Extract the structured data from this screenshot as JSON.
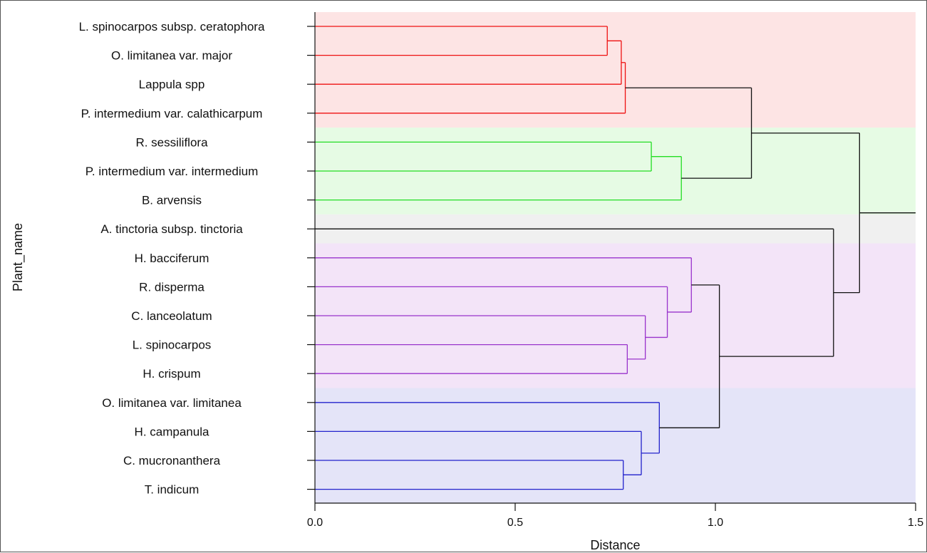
{
  "chart_data": {
    "type": "dendrogram",
    "xlabel": "Distance",
    "ylabel": "Plant_name",
    "xlim": [
      0,
      1.5
    ],
    "x_ticks": [
      {
        "value": 0,
        "label": "0.0"
      },
      {
        "value": 0.5,
        "label": "0.5"
      },
      {
        "value": 1.0,
        "label": "1.0"
      },
      {
        "value": 1.5,
        "label": "1.5"
      }
    ],
    "leaves": [
      "L. spinocarpos subsp. ceratophora",
      "O. limitanea var. major",
      "Lappula spp",
      "P. intermedium var. calathicarpum",
      "R. sessiliflora",
      "P. intermedium var. intermedium",
      "B. arvensis",
      "A. tinctoria subsp. tinctoria",
      "H. bacciferum",
      "R. disperma",
      "C. lanceolatum",
      "L. spinocarpos",
      "H. crispum",
      "O. limitanea var. limitanea",
      "H. campanula",
      "C. mucronanthera",
      "T. indicum"
    ],
    "clusters": [
      {
        "color": "#ee1111",
        "band_color": "#fde4e4",
        "first_leaf": 0,
        "last_leaf": 3
      },
      {
        "color": "#22dd22",
        "band_color": "#e6fbe4",
        "first_leaf": 4,
        "last_leaf": 6
      },
      {
        "color": "#333333",
        "band_color": "#f0f0f0",
        "first_leaf": 7,
        "last_leaf": 7
      },
      {
        "color": "#9933cc",
        "band_color": "#f3e4f8",
        "first_leaf": 8,
        "last_leaf": 12
      },
      {
        "color": "#2222cc",
        "band_color": "#e4e4f8",
        "first_leaf": 13,
        "last_leaf": 16
      }
    ],
    "merges": [
      {
        "id": "m1",
        "left": 0,
        "right": 1,
        "height": 0.73,
        "color": "#ee1111"
      },
      {
        "id": "m2",
        "left": "m1",
        "right": 2,
        "height": 0.765,
        "color": "#ee1111"
      },
      {
        "id": "m3",
        "left": "m2",
        "right": 3,
        "height": 0.775,
        "color": "#ee1111"
      },
      {
        "id": "m4",
        "left": 4,
        "right": 5,
        "height": 0.84,
        "color": "#22dd22"
      },
      {
        "id": "m5",
        "left": "m4",
        "right": 6,
        "height": 0.915,
        "color": "#22dd22"
      },
      {
        "id": "m6",
        "left": "m3",
        "right": "m5",
        "height": 1.09,
        "color": "#111111"
      },
      {
        "id": "m7",
        "left": 11,
        "right": 12,
        "height": 0.78,
        "color": "#9933cc"
      },
      {
        "id": "m8",
        "left": 10,
        "right": "m7",
        "height": 0.825,
        "color": "#9933cc"
      },
      {
        "id": "m9",
        "left": 9,
        "right": "m8",
        "height": 0.88,
        "color": "#9933cc"
      },
      {
        "id": "m10",
        "left": 8,
        "right": "m9",
        "height": 0.94,
        "color": "#9933cc"
      },
      {
        "id": "m11",
        "left": 15,
        "right": 16,
        "height": 0.77,
        "color": "#2222cc"
      },
      {
        "id": "m12",
        "left": 14,
        "right": "m11",
        "height": 0.815,
        "color": "#2222cc"
      },
      {
        "id": "m13",
        "left": 13,
        "right": "m12",
        "height": 0.86,
        "color": "#2222cc"
      },
      {
        "id": "m14",
        "left": "m10",
        "right": "m13",
        "height": 1.01,
        "color": "#111111"
      },
      {
        "id": "m15",
        "left": 7,
        "right": "m14",
        "height": 1.295,
        "color": "#111111"
      },
      {
        "id": "m16",
        "left": "m6",
        "right": "m15",
        "height": 1.36,
        "color": "#111111"
      }
    ],
    "root_tail_to": 1.5,
    "grid": false,
    "legend": "none"
  }
}
